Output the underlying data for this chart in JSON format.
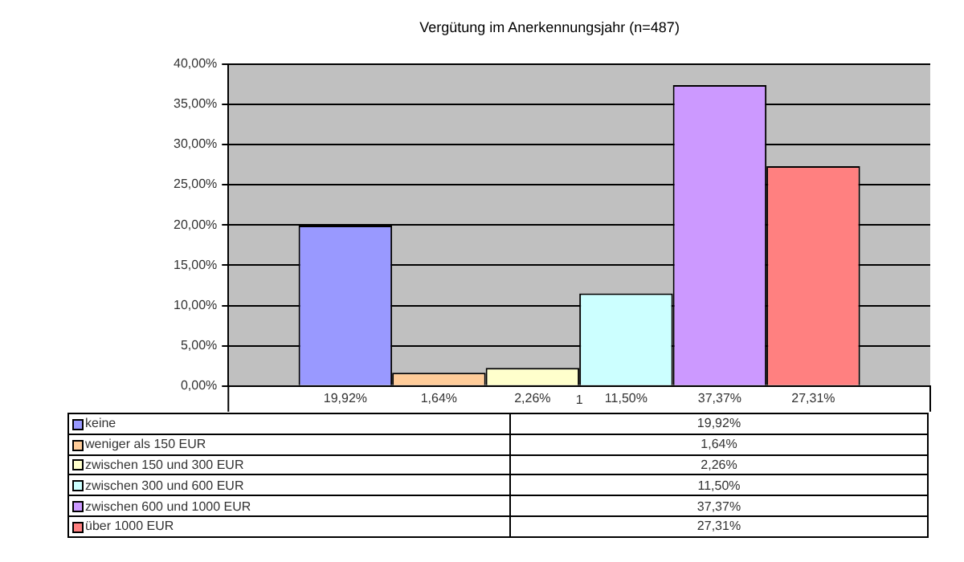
{
  "chart_data": {
    "type": "bar",
    "title": "Vergütung im Anerkennungsjahr (n=487)",
    "categories": [
      "1"
    ],
    "series": [
      {
        "name": "keine",
        "color": "#9999ff",
        "values": [
          19.92
        ],
        "value_labels": [
          "19,92%"
        ]
      },
      {
        "name": "weniger als 150 EUR",
        "color": "#ffcc99",
        "values": [
          1.64
        ],
        "value_labels": [
          "1,64%"
        ]
      },
      {
        "name": "zwischen 150 und 300 EUR",
        "color": "#ffffcc",
        "values": [
          2.26
        ],
        "value_labels": [
          "2,26%"
        ]
      },
      {
        "name": "zwischen 300 und 600 EUR",
        "color": "#ccffff",
        "values": [
          11.5
        ],
        "value_labels": [
          "11,50%"
        ]
      },
      {
        "name": "zwischen 600 und 1000 EUR",
        "color": "#cc99ff",
        "values": [
          37.37
        ],
        "value_labels": [
          "37,37%"
        ]
      },
      {
        "name": "über 1000 EUR",
        "color": "#ff8080",
        "values": [
          27.31
        ],
        "value_labels": [
          "27,31%"
        ]
      }
    ],
    "ylim": [
      0,
      40
    ],
    "yticks": [
      {
        "value": 0,
        "label": "0,00%"
      },
      {
        "value": 5,
        "label": "5,00%"
      },
      {
        "value": 10,
        "label": "10,00%"
      },
      {
        "value": 15,
        "label": "15,00%"
      },
      {
        "value": 20,
        "label": "20,00%"
      },
      {
        "value": 25,
        "label": "25,00%"
      },
      {
        "value": 30,
        "label": "30,00%"
      },
      {
        "value": 35,
        "label": "35,00%"
      },
      {
        "value": 40,
        "label": "40,00%"
      }
    ],
    "grid": "y",
    "legend": "bottom"
  }
}
